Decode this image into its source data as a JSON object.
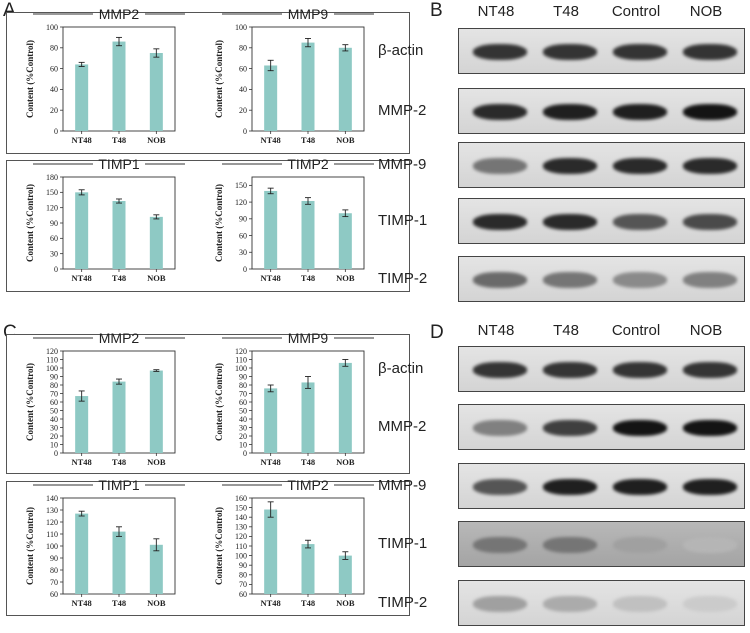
{
  "panels": {
    "A": "A",
    "B": "B",
    "C": "C",
    "D": "D"
  },
  "ylabel": "Content (%Control)",
  "chart_data": [
    {
      "type": "bar",
      "title": "MMP2",
      "categories": [
        "NT48",
        "T48",
        "NOB"
      ],
      "values": [
        64,
        86,
        75
      ],
      "errors": [
        2,
        4,
        4
      ],
      "ylim": [
        0,
        100
      ],
      "yticks": [
        0,
        20,
        40,
        60,
        80,
        100
      ],
      "ylabel": "Content (%Control)",
      "color": "#8ec9c4"
    },
    {
      "type": "bar",
      "title": "MMP9",
      "categories": [
        "NT48",
        "T48",
        "NOB"
      ],
      "values": [
        63,
        85,
        80
      ],
      "errors": [
        5,
        4,
        3
      ],
      "ylim": [
        0,
        100
      ],
      "yticks": [
        0,
        20,
        40,
        60,
        80,
        100
      ],
      "ylabel": "Content (%Control)",
      "color": "#8ec9c4"
    },
    {
      "type": "bar",
      "title": "TIMP1",
      "categories": [
        "NT48",
        "T48",
        "NOB"
      ],
      "values": [
        150,
        133,
        102
      ],
      "errors": [
        5,
        4,
        4
      ],
      "ylim": [
        0,
        180
      ],
      "yticks": [
        0,
        30,
        60,
        90,
        120,
        150,
        180
      ],
      "ylabel": "Content (%Control)",
      "color": "#8ec9c4"
    },
    {
      "type": "bar",
      "title": "TIMP2",
      "categories": [
        "NT48",
        "T48",
        "NOB"
      ],
      "values": [
        140,
        122,
        100
      ],
      "errors": [
        5,
        6,
        6
      ],
      "ylim": [
        0,
        165
      ],
      "yticks": [
        0,
        30,
        60,
        90,
        120,
        150
      ],
      "ylabel": "Content (%Control)",
      "color": "#8ec9c4"
    },
    {
      "type": "bar",
      "title": "MMP2",
      "categories": [
        "NT48",
        "T48",
        "NOB"
      ],
      "values": [
        67,
        84,
        97
      ],
      "errors": [
        6,
        3,
        1
      ],
      "ylim": [
        0,
        120
      ],
      "yticks": [
        0,
        10,
        20,
        30,
        40,
        50,
        60,
        70,
        80,
        90,
        100,
        110,
        120
      ],
      "ylabel": "Content (%Control)",
      "color": "#8ec9c4"
    },
    {
      "type": "bar",
      "title": "MMP9",
      "categories": [
        "NT48",
        "T48",
        "NOB"
      ],
      "values": [
        76,
        83,
        106
      ],
      "errors": [
        4,
        7,
        4
      ],
      "ylim": [
        0,
        120
      ],
      "yticks": [
        0,
        10,
        20,
        30,
        40,
        50,
        60,
        70,
        80,
        90,
        100,
        110,
        120
      ],
      "ylabel": "Content (%Control)",
      "color": "#8ec9c4"
    },
    {
      "type": "bar",
      "title": "TIMP1",
      "categories": [
        "NT48",
        "T48",
        "NOB"
      ],
      "values": [
        127,
        112,
        101
      ],
      "errors": [
        2,
        4,
        5
      ],
      "ylim": [
        60,
        140
      ],
      "yticks": [
        60,
        70,
        80,
        90,
        100,
        110,
        120,
        130,
        140
      ],
      "ylabel": "Content (%Control)",
      "color": "#8ec9c4"
    },
    {
      "type": "bar",
      "title": "TIMP2",
      "categories": [
        "NT48",
        "T48",
        "NOB"
      ],
      "values": [
        148,
        112,
        100
      ],
      "errors": [
        8,
        4,
        4
      ],
      "ylim": [
        60,
        160
      ],
      "yticks": [
        60,
        70,
        80,
        90,
        100,
        110,
        120,
        130,
        140,
        150,
        160
      ],
      "ylabel": "Content (%Control)",
      "color": "#8ec9c4"
    }
  ],
  "blots": [
    {
      "headers": [
        "NT48",
        "T48",
        "Control",
        "NOB"
      ],
      "rows": [
        {
          "label": "β-actin",
          "intensity": [
            0.85,
            0.85,
            0.85,
            0.85
          ],
          "dark": false
        },
        {
          "label": "MMP-2",
          "intensity": [
            0.9,
            0.95,
            0.95,
            1.0
          ],
          "dark": false
        },
        {
          "label": "MMP-9",
          "intensity": [
            0.55,
            0.9,
            0.9,
            0.9
          ],
          "dark": false
        },
        {
          "label": "TIMP-1",
          "intensity": [
            0.9,
            0.9,
            0.7,
            0.75
          ],
          "dark": false
        },
        {
          "label": "TIMP-2",
          "intensity": [
            0.6,
            0.55,
            0.45,
            0.5
          ],
          "dark": false
        }
      ]
    },
    {
      "headers": [
        "NT48",
        "T48",
        "Control",
        "NOB"
      ],
      "rows": [
        {
          "label": "β-actin",
          "intensity": [
            0.85,
            0.85,
            0.85,
            0.85
          ],
          "dark": false
        },
        {
          "label": "MMP-2",
          "intensity": [
            0.5,
            0.8,
            1.0,
            1.0
          ],
          "dark": false
        },
        {
          "label": "MMP-9",
          "intensity": [
            0.7,
            0.95,
            0.95,
            0.95
          ],
          "dark": false
        },
        {
          "label": "TIMP-1",
          "intensity": [
            0.55,
            0.55,
            0.35,
            0.25
          ],
          "dark": true
        },
        {
          "label": "TIMP-2",
          "intensity": [
            0.35,
            0.3,
            0.2,
            0.15
          ],
          "dark": false
        }
      ]
    }
  ]
}
